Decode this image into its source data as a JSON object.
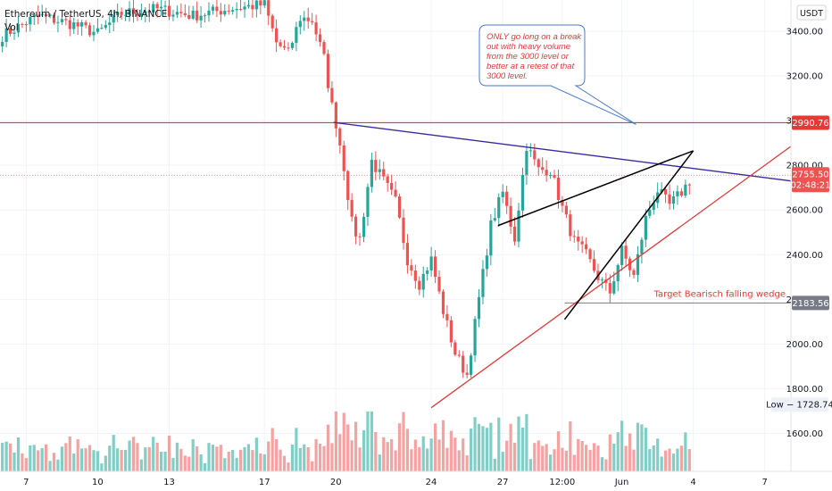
{
  "header": {
    "symbol": "Ethereum / TetherUS, 4h, BINANCE",
    "volume_label": "Vol"
  },
  "currency": "USDT",
  "colors": {
    "up": "#26a69a",
    "down": "#ef5350",
    "up_vol": "#7fcfc7",
    "down_vol": "#f5a3a1",
    "resistance": "#e53935",
    "trend_down": "#3a2a9c",
    "wedge": "#000000",
    "target": "#787b86",
    "callout_border": "#4a7bd0",
    "callout_text": "#e53935"
  },
  "callout": {
    "lines": [
      "ONLY go long on a break",
      "out with heavy volume",
      "from the 3000 level or",
      "better at a retest of that",
      "3000 level."
    ]
  },
  "target_label": "Target Bearisch falling wedge",
  "chart_data": {
    "type": "candlestick",
    "y_ticks": [
      1600,
      1800,
      2000,
      2200,
      2400,
      2600,
      2800,
      3000,
      3200,
      3400
    ],
    "y_tick_labels": [
      "1600.00",
      "1800.00",
      "2000.00",
      "2200.00",
      "2400.00",
      "2600.00",
      "2800.00",
      "3000.00",
      "3200.00",
      "3400.00"
    ],
    "ylim": [
      1430,
      3540
    ],
    "x_ticks": [
      {
        "label": "7",
        "day": 0
      },
      {
        "label": "10",
        "day": 3
      },
      {
        "label": "13",
        "day": 6
      },
      {
        "label": "17",
        "day": 10
      },
      {
        "label": "20",
        "day": 13
      },
      {
        "label": "24",
        "day": 17
      },
      {
        "label": "27",
        "day": 20
      },
      {
        "label": "12:00",
        "day": 22.5
      },
      {
        "label": "Jun",
        "day": 25
      },
      {
        "label": "4",
        "day": 28
      },
      {
        "label": "7",
        "day": 31
      }
    ],
    "xlim": [
      -1.1,
      32.1
    ],
    "levels": {
      "resistance": {
        "label": "2990.76",
        "value": 2990.76
      },
      "current": {
        "price": "2755.50",
        "timer": "02:48:21",
        "value": 2755.5
      },
      "target": {
        "label": "2183.56",
        "value": 2183.56
      },
      "low": {
        "label": "Low − 1728.74",
        "value": 1728.74
      }
    },
    "lines": {
      "trend_down": [
        [
          12.9,
          2992
        ],
        [
          32.1,
          2730
        ]
      ],
      "support": [
        [
          17.0,
          1715
        ],
        [
          32.1,
          2885
        ]
      ],
      "wedge_upper": [
        [
          19.8,
          2530
        ],
        [
          28.0,
          2865
        ]
      ],
      "wedge_lower": [
        [
          22.6,
          2110
        ],
        [
          28.0,
          2865
        ]
      ]
    },
    "keypoints": [
      [
        -1.0,
        3380
      ],
      [
        0.5,
        3470
      ],
      [
        2.0,
        3430
      ],
      [
        3.0,
        3390
      ],
      [
        4.0,
        3480
      ],
      [
        5.5,
        3500
      ],
      [
        7.0,
        3470
      ],
      [
        8.5,
        3500
      ],
      [
        10.0,
        3520
      ],
      [
        10.5,
        3350
      ],
      [
        11.0,
        3300
      ],
      [
        11.5,
        3460
      ],
      [
        12.0,
        3450
      ],
      [
        12.5,
        3280
      ],
      [
        12.8,
        3080
      ],
      [
        13.0,
        2990
      ],
      [
        13.3,
        2820
      ],
      [
        13.7,
        2520
      ],
      [
        14.0,
        2470
      ],
      [
        14.5,
        2820
      ],
      [
        15.0,
        2730
      ],
      [
        15.5,
        2640
      ],
      [
        16.0,
        2380
      ],
      [
        16.5,
        2270
      ],
      [
        17.0,
        2380
      ],
      [
        17.5,
        2150
      ],
      [
        18.0,
        1960
      ],
      [
        18.5,
        1860
      ],
      [
        19.0,
        2200
      ],
      [
        19.5,
        2530
      ],
      [
        20.0,
        2680
      ],
      [
        20.5,
        2470
      ],
      [
        21.0,
        2890
      ],
      [
        21.5,
        2780
      ],
      [
        22.0,
        2780
      ],
      [
        22.5,
        2610
      ],
      [
        23.0,
        2460
      ],
      [
        23.5,
        2400
      ],
      [
        24.0,
        2300
      ],
      [
        24.5,
        2230
      ],
      [
        25.0,
        2420
      ],
      [
        25.5,
        2300
      ],
      [
        26.0,
        2560
      ],
      [
        26.5,
        2690
      ],
      [
        27.0,
        2620
      ],
      [
        27.5,
        2680
      ],
      [
        28.0,
        2755
      ]
    ]
  }
}
